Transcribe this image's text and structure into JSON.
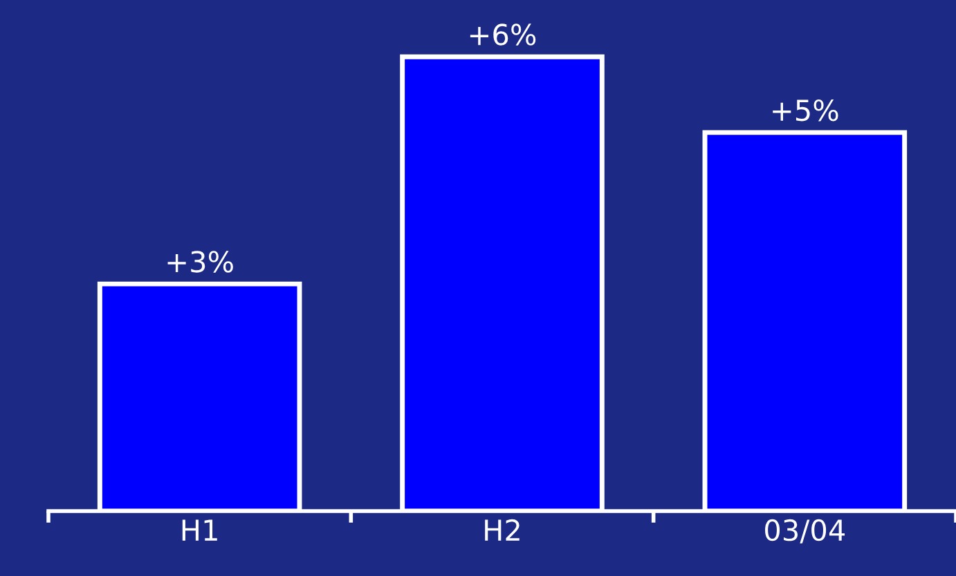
{
  "chart_data": {
    "type": "bar",
    "categories": [
      "H1",
      "H2",
      "03/04"
    ],
    "values": [
      3,
      6,
      5
    ],
    "value_labels": [
      "+3%",
      "+6%",
      "+5%"
    ],
    "color": "#0000ff",
    "grid": false,
    "legend": false,
    "tick_labels": "x"
  }
}
